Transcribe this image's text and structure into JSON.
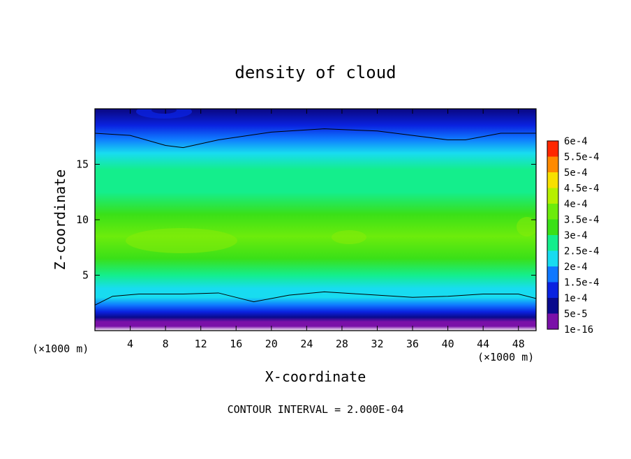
{
  "chart_data": {
    "type": "heatmap",
    "title": "density of cloud",
    "xlabel": "X-coordinate",
    "ylabel": "Z-coordinate",
    "x_unit": "(×1000 m)",
    "y_unit": "(×1000 m)",
    "xlim": [
      0,
      50
    ],
    "ylim": [
      0,
      20
    ],
    "x_ticks": [
      4,
      8,
      12,
      16,
      20,
      24,
      28,
      32,
      36,
      40,
      44,
      48
    ],
    "y_ticks": [
      5,
      10,
      15
    ],
    "footer": "CONTOUR INTERVAL = 2.000E-04",
    "colorbar": {
      "labels": [
        "1e-16",
        "5e-5",
        "1e-4",
        "1.5e-4",
        "2e-4",
        "2.5e-4",
        "3e-4",
        "3.5e-4",
        "4e-4",
        "4.5e-4",
        "5e-4",
        "5.5e-4",
        "6e-4"
      ],
      "colors": [
        "#7a10a8",
        "#0a0a8c",
        "#0a22e0",
        "#0f78ff",
        "#18dcf0",
        "#14ee8c",
        "#3ae018",
        "#6cec0c",
        "#b6f000",
        "#f8e000",
        "#ff8a00",
        "#ff2800",
        "#ff8a8a"
      ]
    },
    "profile": {
      "z": [
        0,
        0.4,
        0.8,
        1.2,
        1.7,
        2.3,
        3.0,
        3.8,
        5.0,
        6.5,
        8.5,
        10.5,
        12.5,
        14.5,
        16.0,
        17.3,
        18.5,
        19.8
      ],
      "density": [
        0,
        1e-16,
        3e-05,
        8e-05,
        0.00012,
        0.00016,
        0.0002,
        0.00024,
        0.00029,
        0.00033,
        0.00035,
        0.00031,
        0.00028,
        0.00025,
        0.00022,
        0.00017,
        0.00011,
        7e-05
      ]
    },
    "contour_lines": [
      {
        "level": 0.0002,
        "x": [
          0,
          2,
          5,
          10,
          14,
          16,
          18,
          22,
          26,
          30,
          36,
          40,
          44,
          48,
          50
        ],
        "z": [
          2.3,
          3.1,
          3.3,
          3.3,
          3.4,
          3.0,
          2.6,
          3.2,
          3.5,
          3.3,
          3.0,
          3.1,
          3.3,
          3.3,
          2.9
        ]
      },
      {
        "level": 0.0002,
        "x": [
          0,
          4,
          8,
          10,
          14,
          20,
          26,
          32,
          36,
          40,
          42,
          46,
          50
        ],
        "z": [
          17.8,
          17.6,
          16.7,
          16.5,
          17.2,
          17.9,
          18.2,
          18.0,
          17.6,
          17.2,
          17.2,
          17.8,
          17.8
        ]
      }
    ]
  }
}
